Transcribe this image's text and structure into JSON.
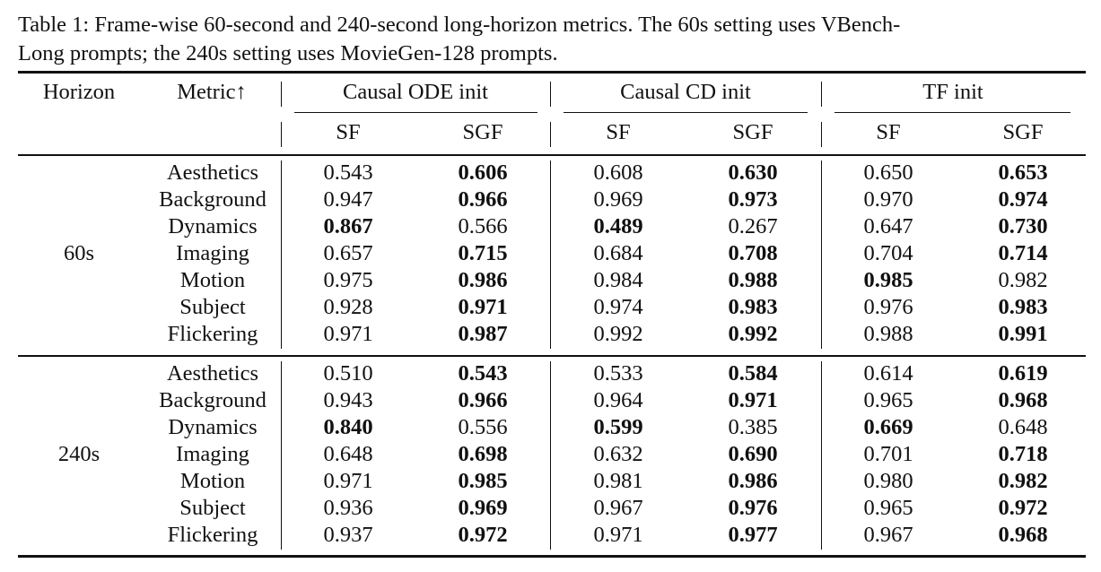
{
  "caption": {
    "line1": "Table 1: Frame-wise 60-second and 240-second long-horizon metrics. The 60s setting uses VBench-",
    "line2": "Long prompts; the 240s setting uses MovieGen-128 prompts."
  },
  "header": {
    "horizon": "Horizon",
    "metric": "Metric↑",
    "groups": [
      "Causal ODE init",
      "Causal CD init",
      "TF init"
    ],
    "sub": [
      "SF",
      "SGF"
    ]
  },
  "sections": [
    {
      "horizon": "60s",
      "rows": [
        {
          "metric": "Aesthetics",
          "values": [
            "0.543",
            "0.606",
            "0.608",
            "0.630",
            "0.650",
            "0.653"
          ],
          "bold": [
            1,
            3,
            5
          ]
        },
        {
          "metric": "Background",
          "values": [
            "0.947",
            "0.966",
            "0.969",
            "0.973",
            "0.970",
            "0.974"
          ],
          "bold": [
            1,
            3,
            5
          ]
        },
        {
          "metric": "Dynamics",
          "values": [
            "0.867",
            "0.566",
            "0.489",
            "0.267",
            "0.647",
            "0.730"
          ],
          "bold": [
            0,
            2,
            5
          ]
        },
        {
          "metric": "Imaging",
          "values": [
            "0.657",
            "0.715",
            "0.684",
            "0.708",
            "0.704",
            "0.714"
          ],
          "bold": [
            1,
            3,
            5
          ]
        },
        {
          "metric": "Motion",
          "values": [
            "0.975",
            "0.986",
            "0.984",
            "0.988",
            "0.985",
            "0.982"
          ],
          "bold": [
            1,
            3,
            4
          ]
        },
        {
          "metric": "Subject",
          "values": [
            "0.928",
            "0.971",
            "0.974",
            "0.983",
            "0.976",
            "0.983"
          ],
          "bold": [
            1,
            3,
            5
          ]
        },
        {
          "metric": "Flickering",
          "values": [
            "0.971",
            "0.987",
            "0.992",
            "0.992",
            "0.988",
            "0.991"
          ],
          "bold": [
            1,
            3,
            5
          ]
        }
      ]
    },
    {
      "horizon": "240s",
      "rows": [
        {
          "metric": "Aesthetics",
          "values": [
            "0.510",
            "0.543",
            "0.533",
            "0.584",
            "0.614",
            "0.619"
          ],
          "bold": [
            1,
            3,
            5
          ]
        },
        {
          "metric": "Background",
          "values": [
            "0.943",
            "0.966",
            "0.964",
            "0.971",
            "0.965",
            "0.968"
          ],
          "bold": [
            1,
            3,
            5
          ]
        },
        {
          "metric": "Dynamics",
          "values": [
            "0.840",
            "0.556",
            "0.599",
            "0.385",
            "0.669",
            "0.648"
          ],
          "bold": [
            0,
            2,
            4
          ]
        },
        {
          "metric": "Imaging",
          "values": [
            "0.648",
            "0.698",
            "0.632",
            "0.690",
            "0.701",
            "0.718"
          ],
          "bold": [
            1,
            3,
            5
          ]
        },
        {
          "metric": "Motion",
          "values": [
            "0.971",
            "0.985",
            "0.981",
            "0.986",
            "0.980",
            "0.982"
          ],
          "bold": [
            1,
            3,
            5
          ]
        },
        {
          "metric": "Subject",
          "values": [
            "0.936",
            "0.969",
            "0.967",
            "0.976",
            "0.965",
            "0.972"
          ],
          "bold": [
            1,
            3,
            5
          ]
        },
        {
          "metric": "Flickering",
          "values": [
            "0.937",
            "0.972",
            "0.971",
            "0.977",
            "0.967",
            "0.968"
          ],
          "bold": [
            1,
            3,
            5
          ]
        }
      ]
    }
  ]
}
